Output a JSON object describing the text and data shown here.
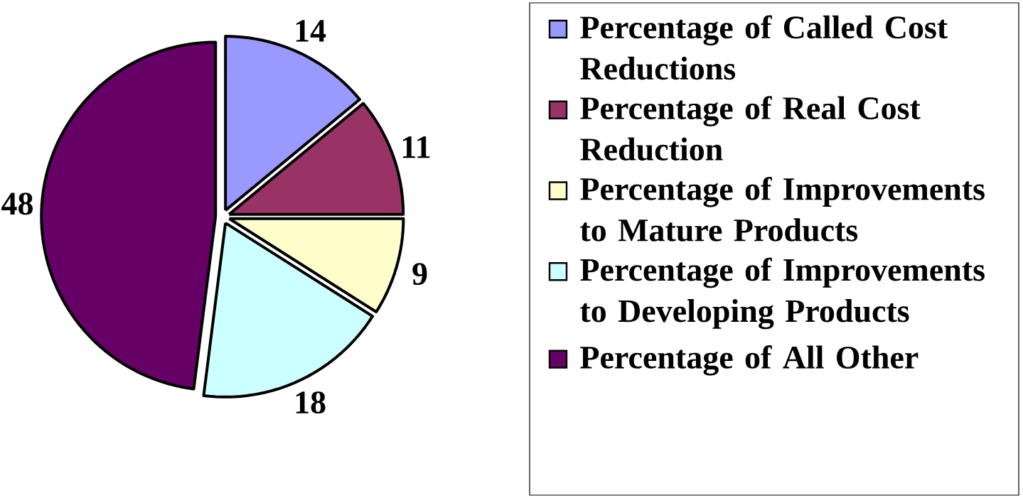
{
  "chart_data": {
    "type": "pie",
    "categories": [
      "Percentage of Called Cost Reductions",
      "Percentage of Real Cost Reduction",
      "Percentage of Improvements to Mature Products",
      "Percentage of Improvements to Developing Products",
      "Percentage of All Other"
    ],
    "values": [
      14,
      11,
      9,
      18,
      48
    ],
    "colors": [
      "#9999ff",
      "#993366",
      "#ffffcc",
      "#ccffff",
      "#660066"
    ],
    "data_labels": true,
    "legend": "right"
  }
}
